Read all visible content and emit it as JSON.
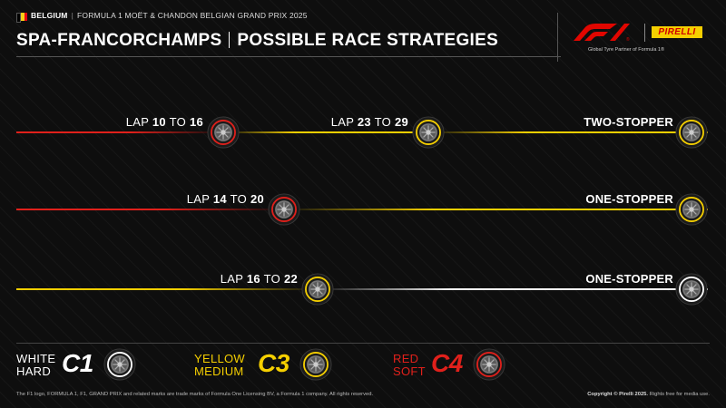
{
  "header": {
    "country": "BELGIUM",
    "event": "FORMULA 1 MOËT & CHANDON BELGIAN GRAND PRIX 2025",
    "title_left": "SPA-FRANCORCHAMPS",
    "title_right": "POSSIBLE RACE STRATEGIES",
    "partner_text": "Global Tyre Partner of Formula 1®",
    "pirelli_logo": "PIRELLI",
    "flag_colors": [
      "#000000",
      "#f7d117",
      "#e30613"
    ]
  },
  "strategies": [
    {
      "name": "TWO-STOPPER",
      "stops": [
        {
          "word1": "LAP",
          "from": "10",
          "word2": "TO",
          "to": "16",
          "tyre": "red"
        },
        {
          "word1": "LAP",
          "from": "23",
          "word2": "TO",
          "to": "29",
          "tyre": "yellow"
        }
      ],
      "final_tyre": "yellow"
    },
    {
      "name": "ONE-STOPPER",
      "stops": [
        {
          "word1": "LAP",
          "from": "14",
          "word2": "TO",
          "to": "20",
          "tyre": "red"
        }
      ],
      "final_tyre": "yellow"
    },
    {
      "name": "ONE-STOPPER",
      "stops": [
        {
          "word1": "LAP",
          "from": "16",
          "word2": "TO",
          "to": "22",
          "tyre": "yellow"
        }
      ],
      "final_tyre": "white"
    }
  ],
  "legend": [
    {
      "line1": "WHITE",
      "line2": "HARD",
      "compound": "C1",
      "color": "#ffffff",
      "tyre": "white"
    },
    {
      "line1": "YELLOW",
      "line2": "MEDIUM",
      "compound": "C3",
      "color": "#f5cf00",
      "tyre": "yellow"
    },
    {
      "line1": "RED",
      "line2": "SOFT",
      "compound": "C4",
      "color": "#e0201b",
      "tyre": "red"
    }
  ],
  "footer": {
    "left": "The F1 logo, FORMULA 1, F1, GRAND PRIX and related marks are trade marks of Formula One Licensing BV, a Formula 1 company. All rights reserved.",
    "right_bold": "Copyright © Pirelli 2025.",
    "right_rest": " Rights free for media use."
  },
  "colors": {
    "red": "#e0201b",
    "yellow": "#f5cf00",
    "white": "#ffffff"
  }
}
